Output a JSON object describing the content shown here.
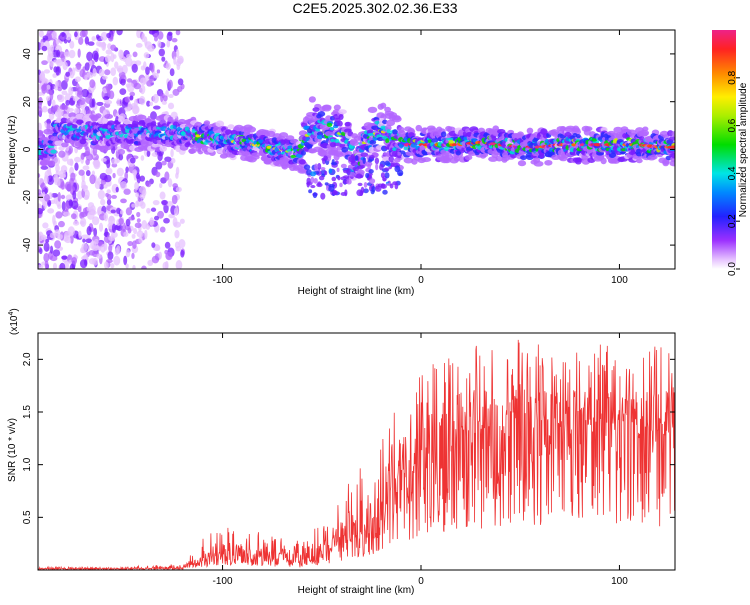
{
  "title": "C2E5.2025.302.02.36.E33",
  "top_xlabel": "Height of straight line (km)",
  "top_ylabel": "Frequency (Hz)",
  "colorbar_label": "Normalized spectral amplitude",
  "bottom_xlabel": "Height of straight line (km)",
  "bottom_ylabel": "SNR (10 * v/v)",
  "bottom_multiplier_base": "(x10",
  "bottom_multiplier_exp": "4",
  "bottom_multiplier_close": ")",
  "colors": {
    "snr_line": "#ee3333",
    "axis": "#000000",
    "background": "#ffffff"
  },
  "chart_data": [
    {
      "type": "heatmap",
      "title": "C2E5.2025.302.02.36.E33",
      "xlabel": "Height of straight line (km)",
      "ylabel": "Frequency (Hz)",
      "xlim": [
        -193,
        128
      ],
      "ylim": [
        -50,
        50
      ],
      "x_ticks": [
        -100,
        0,
        100
      ],
      "x_tick_labels": [
        "-100",
        "0",
        "100"
      ],
      "y_ticks": [
        -40,
        -20,
        0,
        20,
        40
      ],
      "y_tick_labels": [
        "-40",
        "-20",
        "0",
        "20",
        "40"
      ],
      "colorbar": {
        "label": "Normalized spectral amplitude",
        "range": [
          0,
          1
        ],
        "ticks": [
          0.0,
          0.2,
          0.4,
          0.6,
          0.8
        ],
        "tick_labels": [
          "0.0",
          "0.2",
          "0.4",
          "0.6",
          "0.8"
        ],
        "colormap": "rainbow (white-violet-blue-cyan-green-yellow-red-magenta)"
      },
      "ridge": {
        "description": "dominant frequency ridge vs height",
        "x": [
          -185,
          -160,
          -140,
          -125,
          -115,
          -100,
          -85,
          -70,
          -62,
          -55,
          -50,
          -45,
          -38,
          -33,
          -28,
          -20,
          -10,
          0,
          10,
          20,
          30,
          40,
          50,
          60,
          70,
          80,
          90,
          100,
          110,
          120,
          128
        ],
        "y": [
          8,
          7,
          7,
          7,
          6,
          4,
          2,
          0,
          -2,
          10,
          9,
          8,
          6,
          -6,
          4,
          8,
          2,
          2,
          2,
          2,
          3,
          2,
          1,
          1,
          2,
          2,
          2,
          2,
          2,
          1,
          1
        ]
      },
      "noise_region": {
        "x_range": [
          -193,
          -120
        ],
        "description": "scattered violet noise across all frequencies"
      }
    },
    {
      "type": "line",
      "xlabel": "Height of straight line (km)",
      "ylabel": "SNR (10 * v/v)",
      "y_scale_multiplier": "x10^4",
      "xlim": [
        -193,
        128
      ],
      "ylim": [
        0,
        2.25
      ],
      "x_ticks": [
        -100,
        0,
        100
      ],
      "x_tick_labels": [
        "-100",
        "0",
        "100"
      ],
      "y_ticks": [
        0.5,
        1.0,
        1.5,
        2.0
      ],
      "y_tick_labels": [
        "0.5",
        "1.0",
        "1.5",
        "2.0"
      ],
      "series": [
        {
          "color": "#ee3333",
          "envelope_x": [
            -193,
            -150,
            -120,
            -110,
            -100,
            -90,
            -80,
            -70,
            -60,
            -50,
            -40,
            -30,
            -25,
            -20,
            -15,
            -10,
            0,
            10,
            20,
            30,
            40,
            50,
            60,
            70,
            80,
            90,
            100,
            110,
            120,
            128
          ],
          "mean": [
            0.01,
            0.01,
            0.02,
            0.08,
            0.15,
            0.12,
            0.12,
            0.1,
            0.08,
            0.15,
            0.25,
            0.35,
            0.45,
            0.6,
            0.8,
            0.9,
            1.0,
            1.15,
            1.25,
            1.3,
            1.35,
            1.4,
            1.35,
            1.35,
            1.35,
            1.35,
            1.4,
            1.35,
            1.3,
            1.3
          ],
          "peak": [
            0.03,
            0.03,
            0.06,
            0.3,
            0.42,
            0.4,
            0.35,
            0.3,
            0.3,
            0.45,
            0.72,
            1.03,
            0.65,
            1.2,
            1.7,
            1.6,
            1.9,
            2.0,
            2.18,
            2.15,
            2.1,
            2.22,
            2.2,
            2.0,
            2.1,
            2.15,
            2.1,
            2.05,
            2.15,
            2.18
          ]
        }
      ]
    }
  ]
}
